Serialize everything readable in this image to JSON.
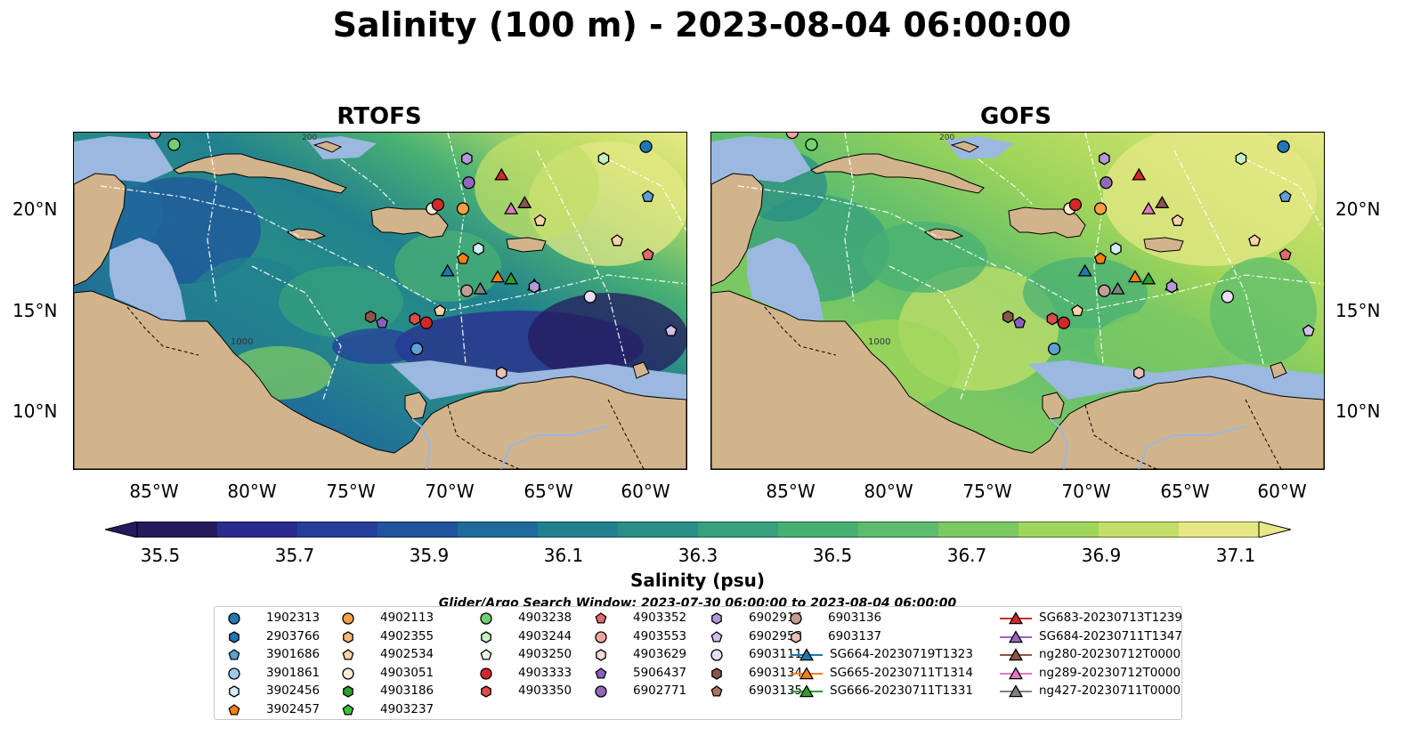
{
  "title": "Salinity (100 m) - 2023-08-04 06:00:00",
  "panels": [
    {
      "name": "RTOFS"
    },
    {
      "name": "GOFS"
    }
  ],
  "lat_labels": [
    "20°N",
    "15°N",
    "10°N"
  ],
  "lon_labels": [
    "85°W",
    "80°W",
    "75°W",
    "70°W",
    "65°W",
    "60°W"
  ],
  "map_labels": {
    "isobath": "1000",
    "contour_top": "200"
  },
  "colorbar": {
    "label": "Salinity (psu)",
    "ticks": [
      "35.5",
      "35.7",
      "35.9",
      "36.1",
      "36.3",
      "36.5",
      "36.7",
      "36.9",
      "37.1"
    ],
    "colors": [
      "#241b5d",
      "#2b2a8e",
      "#253e9a",
      "#1f549c",
      "#1f6b9b",
      "#21808f",
      "#288e86",
      "#37a07c",
      "#48b073",
      "#5dbd6c",
      "#7cc963",
      "#9fd55a",
      "#c3df68",
      "#e6e886"
    ],
    "range": [
      35.5,
      37.1
    ],
    "extend": "both"
  },
  "search_window": "Glider/Argo Search Window: 2023-07-30 06:00:00 to 2023-08-04 06:00:00",
  "legend": {
    "columns": [
      [
        {
          "label": "1902313",
          "marker": "circle",
          "color": "#1f77b4"
        },
        {
          "label": "2903766",
          "marker": "hexagon",
          "color": "#1f77b4"
        },
        {
          "label": "3901686",
          "marker": "pentagon",
          "color": "#5fa0d4"
        },
        {
          "label": "3901861",
          "marker": "circle",
          "color": "#9ec9ee"
        },
        {
          "label": "3902456",
          "marker": "hexagon",
          "color": "#d6ecfb"
        },
        {
          "label": "3902457",
          "marker": "pentagon",
          "color": "#ff7f0e"
        }
      ],
      [
        {
          "label": "4902113",
          "marker": "circle",
          "color": "#ff9f43"
        },
        {
          "label": "4902355",
          "marker": "hexagon",
          "color": "#ffb877"
        },
        {
          "label": "4902534",
          "marker": "pentagon",
          "color": "#ffd3a8"
        },
        {
          "label": "4903051",
          "marker": "circle",
          "color": "#ffecd6"
        },
        {
          "label": "4903186",
          "marker": "hexagon",
          "color": "#2ca02c"
        },
        {
          "label": "4903237",
          "marker": "pentagon",
          "color": "#3cc03c"
        }
      ],
      [
        {
          "label": "4903238",
          "marker": "circle",
          "color": "#72d072"
        },
        {
          "label": "4903244",
          "marker": "hexagon",
          "color": "#c5f0c0"
        },
        {
          "label": "4903250",
          "marker": "pentagon",
          "color": "#eafce4"
        },
        {
          "label": "4903333",
          "marker": "circle",
          "color": "#d62728"
        },
        {
          "label": "4903350",
          "marker": "hexagon",
          "color": "#e04a4a"
        }
      ],
      [
        {
          "label": "4903352",
          "marker": "pentagon",
          "color": "#e36a6a"
        },
        {
          "label": "4903553",
          "marker": "circle",
          "color": "#f1a3a3"
        },
        {
          "label": "4903629",
          "marker": "hexagon",
          "color": "#fadada"
        },
        {
          "label": "5906437",
          "marker": "pentagon",
          "color": "#8a5fbf"
        },
        {
          "label": "6902771",
          "marker": "circle",
          "color": "#9467bd"
        }
      ],
      [
        {
          "label": "6902916",
          "marker": "hexagon",
          "color": "#b497d8"
        },
        {
          "label": "6902958",
          "marker": "pentagon",
          "color": "#d3bfeb"
        },
        {
          "label": "6903111",
          "marker": "circle",
          "color": "#eadcf7"
        },
        {
          "label": "6903134",
          "marker": "hexagon",
          "color": "#8c564b"
        },
        {
          "label": "6903135",
          "marker": "pentagon",
          "color": "#a87565"
        }
      ],
      [
        {
          "label": "6903136",
          "marker": "circle",
          "color": "#c49c94"
        },
        {
          "label": "6903137",
          "marker": "hexagon",
          "color": "#e8bfb6"
        },
        {
          "label": "SG664-20230719T1323",
          "marker": "triangle",
          "color": "#1f77b4"
        },
        {
          "label": "SG665-20230711T1314",
          "marker": "triangle",
          "color": "#ff7f0e"
        },
        {
          "label": "SG666-20230711T1331",
          "marker": "triangle",
          "color": "#2ca02c"
        }
      ],
      [
        {
          "label": "SG683-20230713T1239",
          "marker": "triangle",
          "color": "#d62728"
        },
        {
          "label": "SG684-20230711T1347",
          "marker": "triangle",
          "color": "#9467bd"
        },
        {
          "label": "ng280-20230712T0000",
          "marker": "triangle",
          "color": "#8c564b"
        },
        {
          "label": "ng289-20230712T0000",
          "marker": "triangle",
          "color": "#e377c2"
        },
        {
          "label": "ng427-20230711T0000",
          "marker": "triangle",
          "color": "#7f7f7f"
        }
      ]
    ]
  },
  "map_markers": [
    {
      "lon": -85.0,
      "lat": 23.8,
      "marker": "circle",
      "color": "#f1a3a3"
    },
    {
      "lon": -84.0,
      "lat": 23.2,
      "marker": "circle",
      "color": "#72d072"
    },
    {
      "lon": -59.5,
      "lat": 23.1,
      "marker": "circle",
      "color": "#1f77b4"
    },
    {
      "lon": -61.7,
      "lat": 22.5,
      "marker": "hexagon",
      "color": "#c5f0c0"
    },
    {
      "lon": -68.8,
      "lat": 22.5,
      "marker": "hexagon",
      "color": "#b497d8"
    },
    {
      "lon": -68.7,
      "lat": 21.3,
      "marker": "circle",
      "color": "#9467bd"
    },
    {
      "lon": -67.0,
      "lat": 21.7,
      "marker": "triangle",
      "color": "#d62728"
    },
    {
      "lon": -59.4,
      "lat": 20.6,
      "marker": "pentagon",
      "color": "#5fa0d4"
    },
    {
      "lon": -70.6,
      "lat": 20.0,
      "marker": "circle",
      "color": "#ffecd6"
    },
    {
      "lon": -70.3,
      "lat": 20.2,
      "marker": "circle",
      "color": "#d62728"
    },
    {
      "lon": -69.0,
      "lat": 20.0,
      "marker": "circle",
      "color": "#ff9f43"
    },
    {
      "lon": -66.5,
      "lat": 20.0,
      "marker": "triangle",
      "color": "#e377c2"
    },
    {
      "lon": -65.8,
      "lat": 20.3,
      "marker": "triangle",
      "color": "#8c564b"
    },
    {
      "lon": -65.0,
      "lat": 19.4,
      "marker": "pentagon",
      "color": "#ffd3a8"
    },
    {
      "lon": -61.0,
      "lat": 18.4,
      "marker": "pentagon",
      "color": "#ffd3a8"
    },
    {
      "lon": -59.4,
      "lat": 17.7,
      "marker": "pentagon",
      "color": "#e36a6a"
    },
    {
      "lon": -68.2,
      "lat": 18.0,
      "marker": "hexagon",
      "color": "#d6ecfb"
    },
    {
      "lon": -69.0,
      "lat": 17.5,
      "marker": "pentagon",
      "color": "#ff7f0e"
    },
    {
      "lon": -69.8,
      "lat": 16.9,
      "marker": "triangle",
      "color": "#1f77b4"
    },
    {
      "lon": -67.2,
      "lat": 16.6,
      "marker": "triangle",
      "color": "#ff7f0e"
    },
    {
      "lon": -66.5,
      "lat": 16.5,
      "marker": "triangle",
      "color": "#2ca02c"
    },
    {
      "lon": -68.8,
      "lat": 15.9,
      "marker": "circle",
      "color": "#c49c94"
    },
    {
      "lon": -68.1,
      "lat": 16.0,
      "marker": "triangle",
      "color": "#7f7f7f"
    },
    {
      "lon": -65.3,
      "lat": 16.2,
      "marker": "triangle",
      "color": "#9467bd"
    },
    {
      "lon": -65.3,
      "lat": 16.1,
      "marker": "hexagon",
      "color": "#b497d8"
    },
    {
      "lon": -62.4,
      "lat": 15.6,
      "marker": "circle",
      "color": "#eadcf7"
    },
    {
      "lon": -70.2,
      "lat": 14.9,
      "marker": "pentagon",
      "color": "#ffd3a8"
    },
    {
      "lon": -73.8,
      "lat": 14.6,
      "marker": "hexagon",
      "color": "#8c564b"
    },
    {
      "lon": -73.2,
      "lat": 14.3,
      "marker": "pentagon",
      "color": "#8a5fbf"
    },
    {
      "lon": -71.5,
      "lat": 14.5,
      "marker": "hexagon",
      "color": "#e04a4a"
    },
    {
      "lon": -70.9,
      "lat": 14.3,
      "marker": "circle",
      "color": "#d62728"
    },
    {
      "lon": -71.4,
      "lat": 13.0,
      "marker": "circle",
      "color": "#5fa0d4"
    },
    {
      "lon": -58.2,
      "lat": 13.9,
      "marker": "pentagon",
      "color": "#d3bfeb"
    },
    {
      "lon": -67.0,
      "lat": 11.8,
      "marker": "hexagon",
      "color": "#e8bfb6"
    }
  ]
}
